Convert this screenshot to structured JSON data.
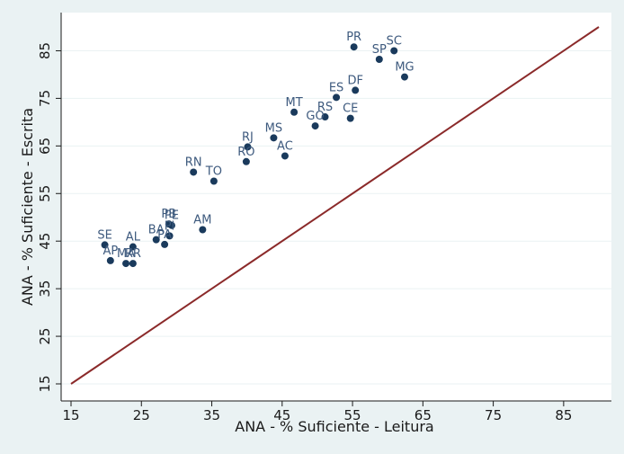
{
  "chart_data": {
    "type": "scatter",
    "xlabel": "ANA - % Suficiente - Leitura",
    "ylabel": "ANA - % Suficiente - Escrita",
    "xlim": [
      15,
      90
    ],
    "ylim": [
      15,
      90
    ],
    "xticks": [
      "15",
      "25",
      "35",
      "45",
      "55",
      "65",
      "75",
      "85"
    ],
    "yticks": [
      "15",
      "25",
      "35",
      "45",
      "55",
      "65",
      "75",
      "85"
    ],
    "grid": "horizontal",
    "reference_line": {
      "from": [
        15,
        15
      ],
      "to": [
        90,
        90
      ]
    },
    "colors": {
      "background": "#eaf2f3",
      "plot_area": "#ffffff",
      "gridline": "#eaf2f3",
      "marker": "#1a3a5c",
      "label": "#3e5a7e",
      "line": "#8b2a2a"
    },
    "points": [
      {
        "label": "PR",
        "x": 55.2,
        "y": 85.8
      },
      {
        "label": "SC",
        "x": 60.9,
        "y": 85.0
      },
      {
        "label": "SP",
        "x": 58.8,
        "y": 83.2
      },
      {
        "label": "MG",
        "x": 62.4,
        "y": 79.5
      },
      {
        "label": "DF",
        "x": 55.4,
        "y": 76.7
      },
      {
        "label": "ES",
        "x": 52.7,
        "y": 75.2
      },
      {
        "label": "MT",
        "x": 46.7,
        "y": 72.1
      },
      {
        "label": "RS",
        "x": 51.1,
        "y": 71.1
      },
      {
        "label": "CE",
        "x": 54.7,
        "y": 70.8
      },
      {
        "label": "GO",
        "x": 49.7,
        "y": 69.2
      },
      {
        "label": "MS",
        "x": 43.8,
        "y": 66.7
      },
      {
        "label": "RJ",
        "x": 40.1,
        "y": 64.8
      },
      {
        "label": "AC",
        "x": 45.4,
        "y": 62.9
      },
      {
        "label": "RO",
        "x": 39.9,
        "y": 61.7
      },
      {
        "label": "RN",
        "x": 32.4,
        "y": 59.5
      },
      {
        "label": "TO",
        "x": 35.3,
        "y": 57.6
      },
      {
        "label": "PB",
        "x": 28.9,
        "y": 48.6
      },
      {
        "label": "PE",
        "x": 29.3,
        "y": 48.3
      },
      {
        "label": "AM",
        "x": 33.7,
        "y": 47.4
      },
      {
        "label": "PI",
        "x": 29.0,
        "y": 46.1
      },
      {
        "label": "BA",
        "x": 27.1,
        "y": 45.3
      },
      {
        "label": "SE",
        "x": 19.8,
        "y": 44.2
      },
      {
        "label": "PA",
        "x": 28.3,
        "y": 44.3
      },
      {
        "label": "AL",
        "x": 23.8,
        "y": 43.8
      },
      {
        "label": "AP",
        "x": 20.6,
        "y": 40.9
      },
      {
        "label": "MA",
        "x": 22.8,
        "y": 40.3
      },
      {
        "label": "RR",
        "x": 23.8,
        "y": 40.3
      }
    ]
  }
}
